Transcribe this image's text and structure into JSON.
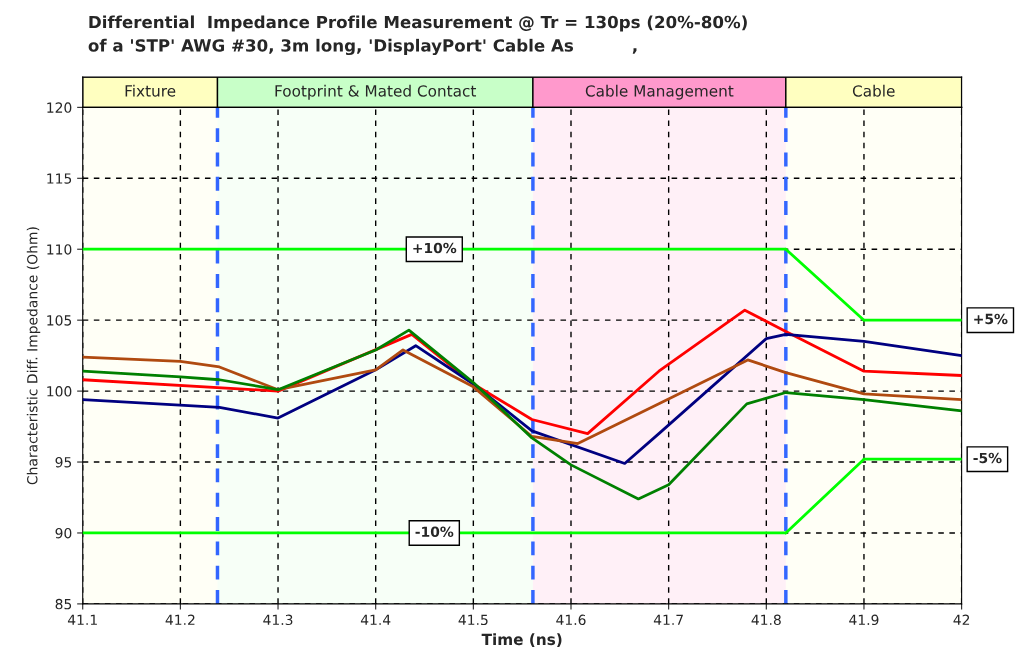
{
  "chart_data": {
    "type": "line",
    "title": "Differential  Impedance Profile Measurement @ Tr = 130ps (20%-80%)",
    "subtitle": "of a 'STP' AWG #30, 3m long, 'DisplayPort' Cable As          ,",
    "xlabel": "Time (ns)",
    "ylabel": "Characteristic Diff. Impedance (Ohm)",
    "xlim": [
      41.1,
      42
    ],
    "ylim": [
      85,
      120
    ],
    "xticks": [
      41.1,
      41.2,
      41.3,
      41.4,
      41.5,
      41.6,
      41.7,
      41.8,
      41.9,
      42
    ],
    "yticks": [
      85,
      90,
      95,
      100,
      105,
      110,
      115,
      120
    ],
    "grid": true,
    "legend": false,
    "line_style": "solid",
    "marker": "none",
    "series": [
      {
        "name": "+10%",
        "color": "#00ff00",
        "x": [
          41.1,
          41.82
        ],
        "values": [
          110,
          110
        ]
      },
      {
        "color": "#00ff00",
        "x": [
          41.82,
          41.9
        ],
        "values": [
          110,
          105
        ]
      },
      {
        "name": "+5%",
        "color": "#00ff00",
        "x": [
          41.9,
          42
        ],
        "values": [
          105,
          105
        ]
      },
      {
        "name": "-10%",
        "color": "#00ff00",
        "x": [
          41.1,
          41.82
        ],
        "values": [
          90,
          90
        ]
      },
      {
        "color": "#00ff00",
        "x": [
          41.82,
          41.9
        ],
        "values": [
          90,
          95.2
        ]
      },
      {
        "name": "-5%",
        "color": "#00ff00",
        "x": [
          41.9,
          42
        ],
        "values": [
          95.2,
          95.2
        ]
      },
      {
        "color": "#ff0000",
        "x": [
          41.1,
          41.3,
          41.437,
          41.5,
          41.56,
          41.617,
          41.69,
          41.778,
          41.82,
          41.9,
          42
        ],
        "values": [
          100.8,
          100.0,
          104.0,
          100.5,
          98.0,
          97.0,
          101.4,
          105.7,
          104.2,
          101.4,
          101.1
        ]
      },
      {
        "color": "#000080",
        "x": [
          41.1,
          41.24,
          41.3,
          41.4,
          41.441,
          41.5,
          41.56,
          41.655,
          41.69,
          41.8,
          41.82,
          41.9,
          42
        ],
        "values": [
          99.4,
          98.85,
          98.1,
          101.5,
          103.2,
          100.5,
          97.2,
          94.9,
          97.0,
          103.7,
          104.0,
          103.5,
          102.5
        ]
      },
      {
        "color": "#b04a10",
        "x": [
          41.1,
          41.2,
          41.24,
          41.3,
          41.4,
          41.428,
          41.5,
          41.56,
          41.607,
          41.69,
          41.781,
          41.82,
          41.9,
          42
        ],
        "values": [
          102.4,
          102.1,
          101.7,
          100.1,
          101.5,
          102.9,
          100.3,
          96.8,
          96.3,
          99.1,
          102.2,
          101.3,
          99.8,
          99.4
        ]
      },
      {
        "color": "#008000",
        "x": [
          41.1,
          41.2,
          41.24,
          41.3,
          41.4,
          41.434,
          41.5,
          41.56,
          41.6,
          41.669,
          41.7,
          41.78,
          41.82,
          41.9,
          42
        ],
        "values": [
          101.4,
          101.0,
          100.8,
          100.1,
          102.9,
          104.3,
          100.6,
          96.7,
          94.8,
          92.4,
          93.4,
          99.1,
          99.9,
          99.4,
          98.6
        ]
      }
    ],
    "ref_lines": [
      {
        "axis": "x",
        "value": 41.238,
        "color": "#3366ff",
        "line_style": "dashed"
      },
      {
        "axis": "x",
        "value": 41.561,
        "color": "#3366ff",
        "line_style": "dashed"
      },
      {
        "axis": "x",
        "value": 41.82,
        "color": "#3366ff",
        "line_style": "dashed"
      }
    ],
    "bands": [
      {
        "axis": "x",
        "from": 41.1,
        "to": 41.238,
        "label": "Fixture",
        "color": "#ffffc0"
      },
      {
        "axis": "x",
        "from": 41.238,
        "to": 41.561,
        "label": "Footprint & Mated Contact",
        "color": "#c8ffc8"
      },
      {
        "axis": "x",
        "from": 41.561,
        "to": 41.82,
        "label": "Cable Management",
        "color": "#ff99cc"
      },
      {
        "axis": "x",
        "from": 41.82,
        "to": 42,
        "label": "Cable",
        "color": "#ffffc0"
      }
    ]
  }
}
